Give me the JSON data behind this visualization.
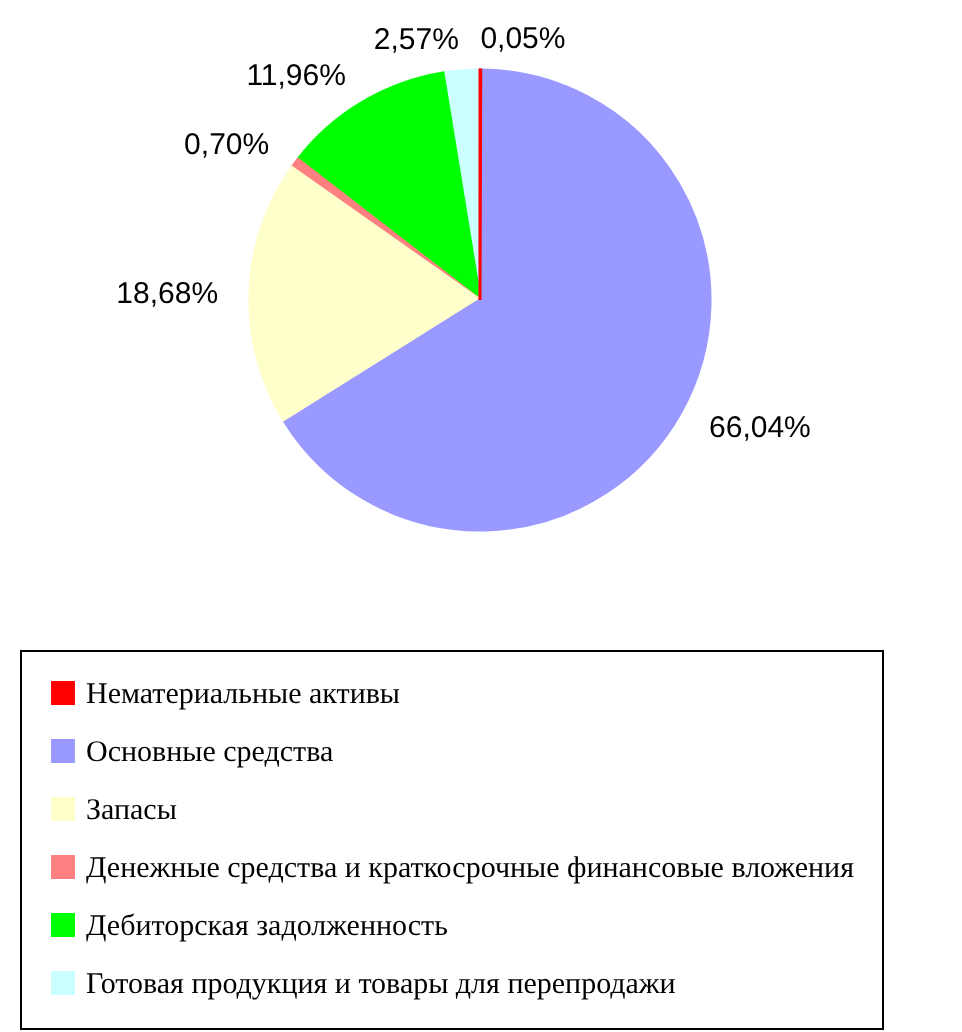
{
  "chart_data": {
    "type": "pie",
    "categories": [
      "Нематериальные активы",
      "Основные средства",
      "Запасы",
      "Денежные средства и краткосрочные финансовые вложения",
      "Дебиторская задолженность",
      "Готовая продукция и товары для перепродажи"
    ],
    "values": [
      0.05,
      66.04,
      18.68,
      0.7,
      11.96,
      2.57
    ],
    "colors": [
      "#ff0000",
      "#9999ff",
      "#ffffcc",
      "#ff8080",
      "#00ff00",
      "#ccffff"
    ],
    "value_labels": [
      "0,05%",
      "66,04%",
      "18,68%",
      "0,70%",
      "11,96%",
      "2,57%"
    ],
    "legend": "bottom"
  }
}
